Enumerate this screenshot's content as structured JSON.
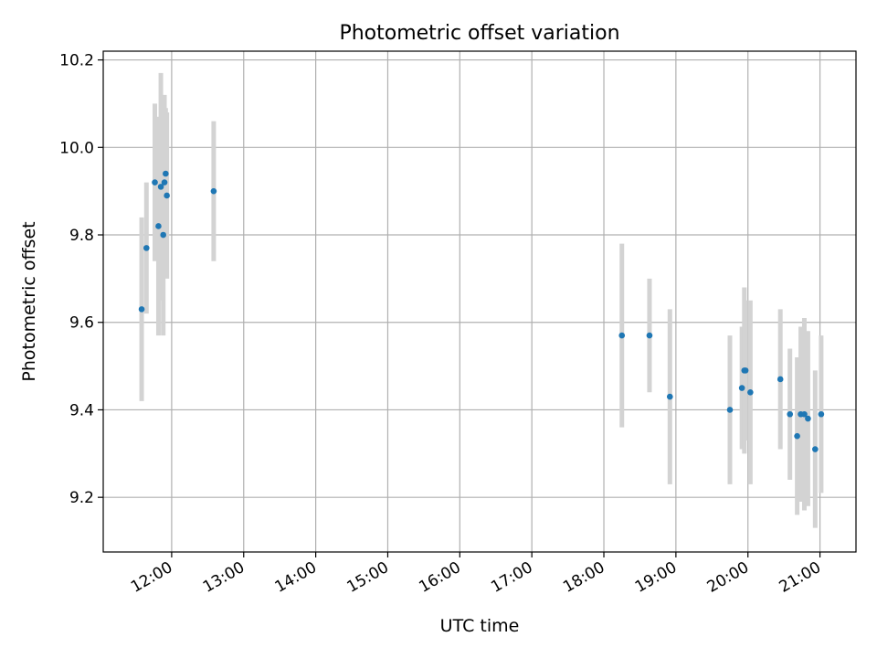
{
  "chart_data": {
    "type": "scatter",
    "title": "Photometric offset variation",
    "xlabel": "UTC time",
    "ylabel": "Photometric offset",
    "x_ticks": [
      "12:00",
      "13:00",
      "14:00",
      "15:00",
      "16:00",
      "17:00",
      "18:00",
      "19:00",
      "20:00",
      "21:00"
    ],
    "y_ticks": [
      "9.2",
      "9.4",
      "9.6",
      "9.8",
      "10.0",
      "10.2"
    ],
    "xlim": [
      "11:03",
      "21:30"
    ],
    "ylim": [
      9.075,
      10.22
    ],
    "grid": true,
    "colors": {
      "point": "#1f77b4",
      "errorbar": "#d3d3d3",
      "grid": "#b0b0b0"
    },
    "points": [
      {
        "time": "11:35",
        "y": 9.63,
        "err": 0.21
      },
      {
        "time": "11:39",
        "y": 9.77,
        "err": 0.15
      },
      {
        "time": "11:46",
        "y": 9.92,
        "err": 0.18
      },
      {
        "time": "11:49",
        "y": 9.82,
        "err": 0.25
      },
      {
        "time": "11:51",
        "y": 9.91,
        "err": 0.26
      },
      {
        "time": "11:53",
        "y": 9.8,
        "err": 0.23
      },
      {
        "time": "11:54",
        "y": 9.92,
        "err": 0.2
      },
      {
        "time": "11:55",
        "y": 9.94,
        "err": 0.15
      },
      {
        "time": "11:56",
        "y": 9.89,
        "err": 0.19
      },
      {
        "time": "12:35",
        "y": 9.9,
        "err": 0.16
      },
      {
        "time": "18:15",
        "y": 9.57,
        "err": 0.21
      },
      {
        "time": "18:38",
        "y": 9.57,
        "err": 0.13
      },
      {
        "time": "18:55",
        "y": 9.43,
        "err": 0.2
      },
      {
        "time": "19:45",
        "y": 9.4,
        "err": 0.17
      },
      {
        "time": "19:55",
        "y": 9.45,
        "err": 0.14
      },
      {
        "time": "19:57",
        "y": 9.49,
        "err": 0.19
      },
      {
        "time": "19:58",
        "y": 9.49,
        "err": 0.16
      },
      {
        "time": "20:02",
        "y": 9.44,
        "err": 0.21
      },
      {
        "time": "20:27",
        "y": 9.47,
        "err": 0.16
      },
      {
        "time": "20:35",
        "y": 9.39,
        "err": 0.15
      },
      {
        "time": "20:41",
        "y": 9.34,
        "err": 0.18
      },
      {
        "time": "20:44",
        "y": 9.39,
        "err": 0.2
      },
      {
        "time": "20:47",
        "y": 9.39,
        "err": 0.22
      },
      {
        "time": "20:50",
        "y": 9.38,
        "err": 0.2
      },
      {
        "time": "20:56",
        "y": 9.31,
        "err": 0.18
      },
      {
        "time": "21:01",
        "y": 9.39,
        "err": 0.18
      }
    ]
  }
}
